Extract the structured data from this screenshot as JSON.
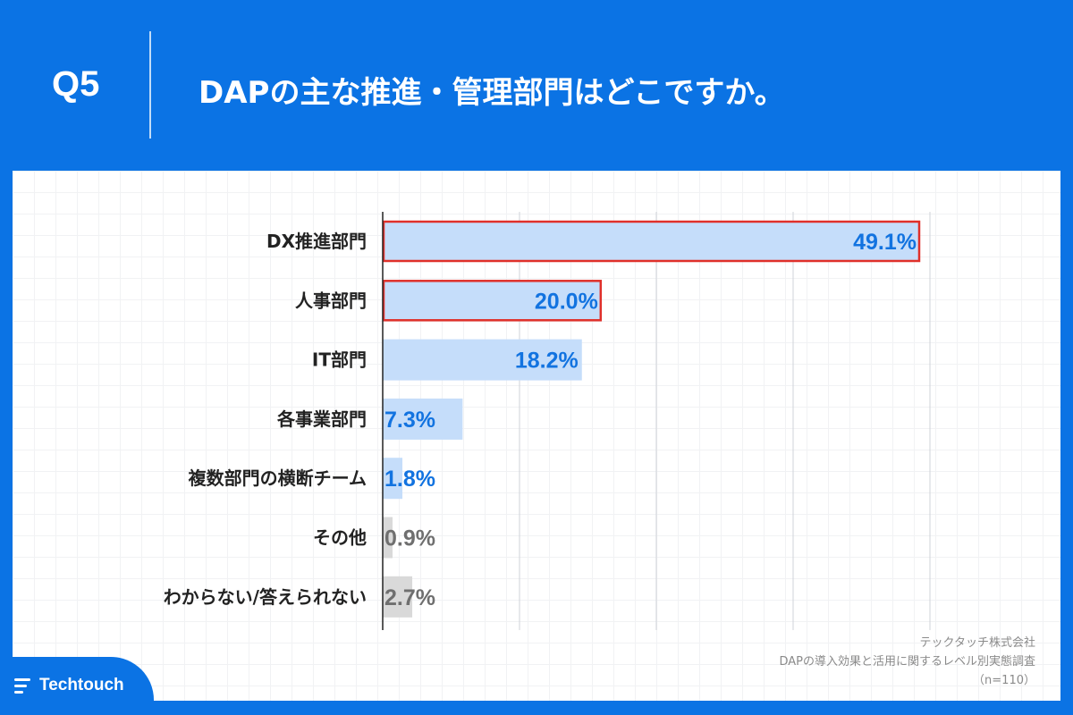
{
  "header": {
    "question_number": "Q5",
    "title": "DAPの主な推進・管理部門はどこですか。"
  },
  "chart_data": {
    "type": "bar",
    "orientation": "horizontal",
    "categories": [
      "DX推進部門",
      "人事部門",
      "IT部門",
      "各事業部門",
      "複数部門の横断チーム",
      "その他",
      "わからない/答えられない"
    ],
    "values": [
      49.1,
      20.0,
      18.2,
      7.3,
      1.8,
      0.9,
      2.7
    ],
    "value_labels": [
      "49.1%",
      "20.0%",
      "18.2%",
      "7.3%",
      "1.8%",
      "0.9%",
      "2.7%"
    ],
    "highlighted": [
      true,
      true,
      false,
      false,
      false,
      false,
      false
    ],
    "muted": [
      false,
      false,
      false,
      false,
      false,
      true,
      true
    ],
    "xlim": [
      0,
      50
    ],
    "grid_interval": 12.5,
    "grid": true,
    "colors": {
      "bar": "#c5ddfa",
      "bar_muted": "#d9d9d9",
      "label": "#1273e0",
      "label_muted": "#6f6f6f",
      "highlight_border": "#e0302a",
      "grid": "#cfd3d8"
    }
  },
  "footer": {
    "company": "テックタッチ株式会社",
    "survey": "DAPの導入効果と活用に関するレベル別実態調査",
    "sample": "（n=110）"
  },
  "brand": {
    "name": "Techtouch",
    "icon": "techtouch-logo-icon"
  }
}
